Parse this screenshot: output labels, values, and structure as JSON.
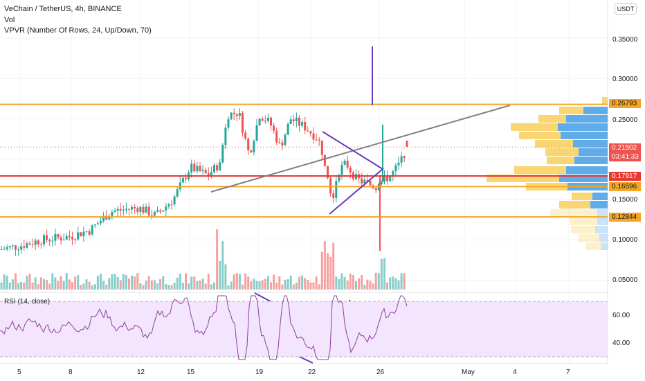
{
  "header": {
    "symbol_line": "VeChain / TetherUS, 4h, BINANCE",
    "vol_label": "Vol",
    "vpvr_label": "VPVR (Number Of Rows, 24, Up/Down, 70)",
    "currency_button": "USDT"
  },
  "rsi": {
    "label": "RSI (14, close)",
    "ticks": [
      "60.00",
      "40.00"
    ]
  },
  "price_axis": {
    "ticks": [
      "0.35000",
      "0.30000",
      "0.25000",
      "0.15000",
      "0.10000",
      "0.05000"
    ]
  },
  "time_axis": {
    "ticks": [
      "5",
      "8",
      "12",
      "15",
      "19",
      "22",
      "26",
      "May",
      "4",
      "7"
    ]
  },
  "price_labels": {
    "resistance": "0.26793",
    "current": "0.21502",
    "countdown": "03:41:33",
    "red_level": "0.17917",
    "support1": "0.16596",
    "support2": "0.12844"
  },
  "colors": {
    "up": "#26a69a",
    "down": "#ef5350",
    "orange": "#f5a623",
    "red_line": "#e53935",
    "purple": "#673ab7",
    "rsi_line": "#8e3e9e",
    "rsi_band": "#f3e5fd",
    "vp_blue": "#4fa3e8",
    "vp_yellow": "#f9cf59"
  },
  "chart_data": {
    "type": "candlestick",
    "title": "VeChain / TetherUS, 4h, BINANCE",
    "ylim": [
      0.035,
      0.375
    ],
    "horizontal_levels": [
      0.26793,
      0.17917,
      0.16596,
      0.12844
    ],
    "last_price": 0.21502,
    "key_points": [
      {
        "date": "5",
        "close": 0.089
      },
      {
        "date": "8",
        "close": 0.105
      },
      {
        "date": "12",
        "close": 0.135
      },
      {
        "date": "15",
        "close": 0.195
      },
      {
        "date": "16",
        "close": 0.255
      },
      {
        "date": "19",
        "close": 0.245
      },
      {
        "date": "22",
        "close": 0.185
      },
      {
        "date": "23",
        "close": 0.155
      },
      {
        "date": "25",
        "close": 0.17
      },
      {
        "date": "26",
        "close": 0.165
      },
      {
        "date": "27",
        "close": 0.215
      }
    ],
    "rsi_range": [
      25,
      75
    ],
    "rsi_levels": [
      70,
      30
    ]
  }
}
